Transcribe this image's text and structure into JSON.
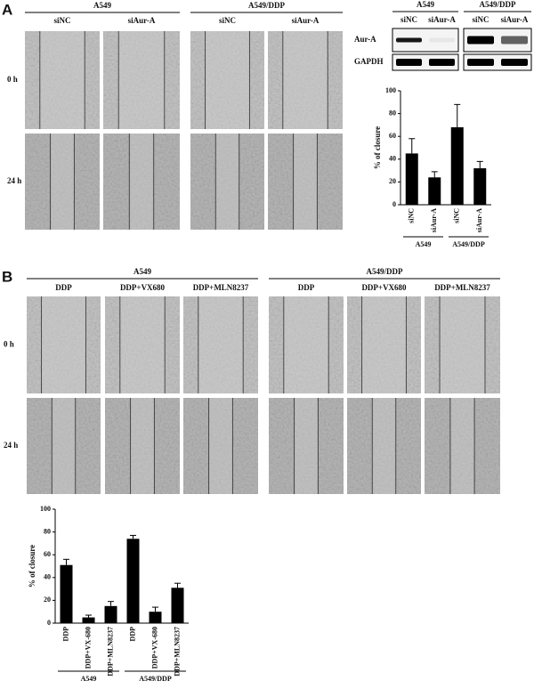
{
  "panel_a": {
    "label": "A",
    "groups": [
      {
        "name": "A549",
        "conditions": [
          "siNC",
          "siAur-A"
        ]
      },
      {
        "name": "A549/DDP",
        "conditions": [
          "siNC",
          "siAur-A"
        ]
      }
    ],
    "rows": [
      "0 h",
      "24 h"
    ],
    "blot": {
      "groups": [
        {
          "name": "A549",
          "lanes": [
            "siNC",
            "siAur-A"
          ]
        },
        {
          "name": "A549/DDP",
          "lanes": [
            "siNC",
            "siAur-A"
          ]
        }
      ],
      "rows": [
        "Aur-A",
        "GAPDH"
      ]
    }
  },
  "panel_b": {
    "label": "B",
    "groups": [
      {
        "name": "A549",
        "conditions": [
          "DDP",
          "DDP+VX680",
          "DDP+MLN8237"
        ]
      },
      {
        "name": "A549/DDP",
        "conditions": [
          "DDP",
          "DDP+VX680",
          "DDP+MLN8237"
        ]
      }
    ],
    "rows": [
      "0 h",
      "24 h"
    ]
  },
  "chart_data": [
    {
      "type": "bar",
      "ylabel": "% of closure",
      "color": "#000000",
      "groups": [
        {
          "label": "A549",
          "categories": [
            "siNC",
            "siAur-A"
          ]
        },
        {
          "label": "A549/DDP",
          "categories": [
            "siNC",
            "siAur-A"
          ]
        }
      ],
      "values": [
        45,
        24,
        68,
        32
      ],
      "errors": [
        13,
        5,
        20,
        6
      ],
      "ylim": [
        0,
        100
      ],
      "yticks": [
        0,
        20,
        40,
        60,
        80,
        100
      ]
    },
    {
      "type": "bar",
      "ylabel": "% of closure",
      "color": "#000000",
      "groups": [
        {
          "label": "A549",
          "categories": [
            "DDP",
            "DDP+VX-680",
            "DDP+MLN8237"
          ]
        },
        {
          "label": "A549/DDP",
          "categories": [
            "DDP",
            "DDP+VX-680",
            "DDP+MLN8237"
          ]
        }
      ],
      "values": [
        51,
        5,
        15,
        74,
        10,
        31
      ],
      "errors": [
        5,
        2,
        4,
        3,
        4,
        4
      ],
      "ylim": [
        0,
        100
      ],
      "yticks": [
        0,
        20,
        40,
        60,
        80,
        100
      ]
    }
  ]
}
